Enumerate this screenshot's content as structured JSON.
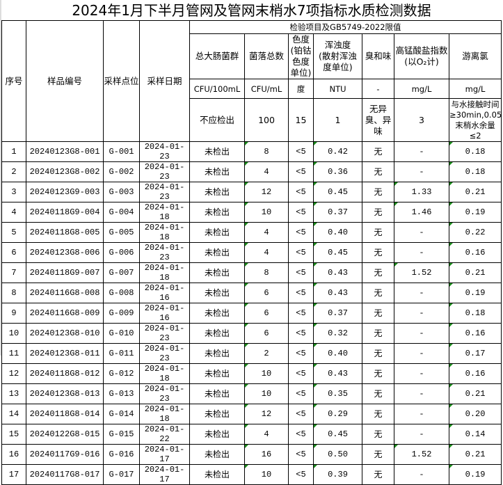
{
  "title": "2024年1月下半月管网及管网末梢水7项指标水质检测数据",
  "headers": {
    "seq": "序号",
    "sample_id": "样品编号",
    "site": "采样点位",
    "date": "采样日期",
    "group": "检验项目及GB5749-2022限值",
    "items": [
      {
        "name": "总大肠菌群",
        "unit": "CFU/100mL",
        "limit": "不应检出"
      },
      {
        "name": "菌落总数",
        "unit": "CFU/mL",
        "limit": "100"
      },
      {
        "name": "色度(铂钴色度单位)",
        "unit": "度",
        "limit": "15"
      },
      {
        "name": "浑浊度(散射浑浊度单位)",
        "unit": "NTU",
        "limit": "1"
      },
      {
        "name": "臭和味",
        "unit": "-",
        "limit": "无异臭、异味"
      },
      {
        "name": "高锰酸盐指数(以O₂计)",
        "unit": "mg/L",
        "limit": "3"
      },
      {
        "name": "游离氯",
        "unit": "mg/L",
        "limit": "与水接触时间≥30min,0.05≤末梢水余量≤2"
      }
    ]
  },
  "rows": [
    [
      "1",
      "20240123G8-001",
      "G-001",
      "2024-01-23",
      "未检出",
      "8",
      "<5",
      "0.42",
      "无",
      "-",
      "0.18"
    ],
    [
      "2",
      "20240123G8-002",
      "G-002",
      "2024-01-23",
      "未检出",
      "4",
      "<5",
      "0.36",
      "无",
      "-",
      "0.18"
    ],
    [
      "3",
      "20240123G9-003",
      "G-003",
      "2024-01-23",
      "未检出",
      "12",
      "<5",
      "0.45",
      "无",
      "1.33",
      "0.21"
    ],
    [
      "4",
      "20240118G9-004",
      "G-004",
      "2024-01-18",
      "未检出",
      "10",
      "<5",
      "0.37",
      "无",
      "1.46",
      "0.19"
    ],
    [
      "5",
      "20240118G8-005",
      "G-005",
      "2024-01-18",
      "未检出",
      "4",
      "<5",
      "0.40",
      "无",
      "-",
      "0.22"
    ],
    [
      "6",
      "20240123G8-006",
      "G-006",
      "2024-01-23",
      "未检出",
      "4",
      "<5",
      "0.45",
      "无",
      "-",
      "0.16"
    ],
    [
      "7",
      "20240118G9-007",
      "G-007",
      "2024-01-18",
      "未检出",
      "8",
      "<5",
      "0.43",
      "无",
      "1.52",
      "0.21"
    ],
    [
      "8",
      "20240116G8-008",
      "G-008",
      "2024-01-16",
      "未检出",
      "6",
      "<5",
      "0.43",
      "无",
      "-",
      "0.19"
    ],
    [
      "9",
      "20240116G8-009",
      "G-009",
      "2024-01-16",
      "未检出",
      "6",
      "<5",
      "0.37",
      "无",
      "-",
      "0.18"
    ],
    [
      "10",
      "20240123G8-010",
      "G-010",
      "2024-01-23",
      "未检出",
      "6",
      "<5",
      "0.32",
      "无",
      "-",
      "0.16"
    ],
    [
      "11",
      "20240123G8-011",
      "G-011",
      "2024-01-23",
      "未检出",
      "2",
      "<5",
      "0.40",
      "无",
      "-",
      "0.17"
    ],
    [
      "12",
      "20240118G8-012",
      "G-012",
      "2024-01-18",
      "未检出",
      "10",
      "<5",
      "0.43",
      "无",
      "-",
      "0.16"
    ],
    [
      "13",
      "20240123G8-013",
      "G-013",
      "2024-01-23",
      "未检出",
      "10",
      "<5",
      "0.35",
      "无",
      "-",
      "0.21"
    ],
    [
      "14",
      "20240118G8-014",
      "G-014",
      "2024-01-18",
      "未检出",
      "12",
      "<5",
      "0.29",
      "无",
      "-",
      "0.20"
    ],
    [
      "15",
      "20240122G8-015",
      "G-015",
      "2024-01-22",
      "未检出",
      "4",
      "<5",
      "0.45",
      "无",
      "-",
      "0.14"
    ],
    [
      "16",
      "20240117G9-016",
      "G-016",
      "2024-01-17",
      "未检出",
      "16",
      "<5",
      "0.50",
      "无",
      "1.52",
      "0.21"
    ],
    [
      "17",
      "20240117G8-017",
      "G-017",
      "2024-01-17",
      "未检出",
      "10",
      "<5",
      "0.39",
      "无",
      "-",
      "0.19"
    ]
  ]
}
